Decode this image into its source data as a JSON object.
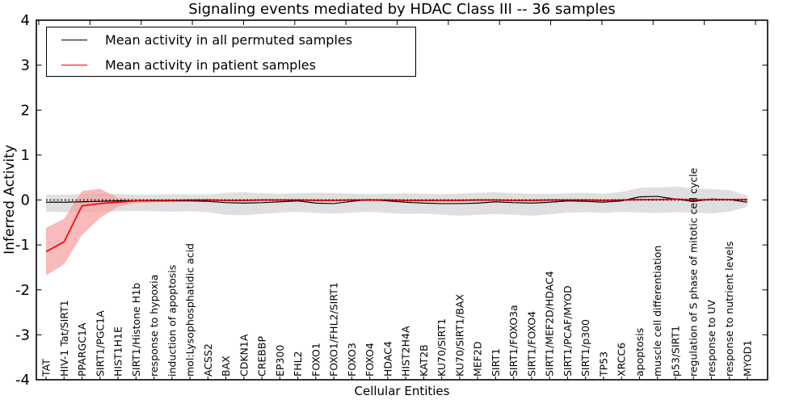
{
  "chart_data": {
    "type": "line",
    "title": "Signaling events mediated by HDAC Class III -- 36 samples",
    "xlabel": "Cellular Entities",
    "ylabel": "Inferred Activity",
    "ylim": [
      -4,
      4
    ],
    "yticks": [
      4,
      3,
      2,
      1,
      0,
      -1,
      -2,
      -3,
      -4
    ],
    "grid": false,
    "legend": {
      "position": "upper-left",
      "items": [
        "Mean activity in all permuted samples",
        "Mean activity in patient samples"
      ]
    },
    "zero_line": {
      "y": 0,
      "style": "dotted",
      "color": "#000000"
    },
    "categories": [
      "TAT",
      "HIV-1 Tat/SIRT1",
      "PPARGC1A",
      "SIRT1/PGC1A",
      "HIST1H1E",
      "SIRT1/Histone H1b",
      "response to hypoxia",
      "induction of apoptosis",
      "mol:Lysophosphatidic acid",
      "ACSS2",
      "BAX",
      "CDKN1A",
      "CREBBP",
      "EP300",
      "FHL2",
      "FOXO1",
      "FOXO1/FHL2/SIRT1",
      "FOXO3",
      "FOXO4",
      "HDAC4",
      "HIST2H4A",
      "KAT2B",
      "KU70/SIRT1",
      "KU70/SIRT1/BAX",
      "MEF2D",
      "SIRT1",
      "SIRT1/FOXO3a",
      "SIRT1/FOXO4",
      "SIRT1/MEF2D/HDAC4",
      "SIRT1/PCAF/MYOD",
      "SIRT1/p300",
      "TP53",
      "XRCC6",
      "apoptosis",
      "muscle cell differentiation",
      "p53/SIRT1",
      "regulation of S phase of mitotic cell cycle",
      "response to UV",
      "response to nutrient levels",
      "MYOD1"
    ],
    "series": [
      {
        "name": "Mean activity in all permuted samples",
        "color": "#000000",
        "style": "solid",
        "values": [
          -0.05,
          -0.05,
          -0.04,
          -0.03,
          -0.02,
          -0.02,
          -0.02,
          -0.02,
          -0.02,
          -0.03,
          -0.06,
          -0.07,
          -0.06,
          -0.04,
          -0.02,
          -0.07,
          -0.08,
          -0.03,
          0.01,
          -0.02,
          -0.05,
          -0.07,
          -0.08,
          -0.08,
          -0.07,
          -0.04,
          -0.06,
          -0.07,
          -0.05,
          -0.02,
          -0.03,
          -0.05,
          -0.02,
          0.07,
          0.08,
          0.02,
          -0.03,
          0.02,
          0.01,
          -0.05
        ]
      },
      {
        "name": "Mean activity in patient samples",
        "color": "#ff0000",
        "style": "solid",
        "values": [
          -1.15,
          -0.93,
          -0.13,
          -0.08,
          -0.05,
          -0.02,
          -0.01,
          -0.01,
          0,
          0,
          -0.01,
          -0.01,
          0,
          0,
          0,
          -0.01,
          -0.01,
          0,
          0,
          0,
          -0.01,
          -0.01,
          -0.01,
          -0.01,
          0,
          0,
          -0.01,
          -0.01,
          0,
          0,
          0,
          -0.01,
          0,
          0.01,
          0.01,
          0.02,
          0,
          0.01,
          0.01,
          0.01
        ]
      }
    ],
    "bands": [
      {
        "series": "Mean activity in all permuted samples",
        "color": "#dcdcdc",
        "high": [
          0.12,
          0.12,
          0.13,
          0.14,
          0.13,
          0.12,
          0.12,
          0.13,
          0.12,
          0.12,
          0.16,
          0.17,
          0.15,
          0.14,
          0.15,
          0.16,
          0.15,
          0.14,
          0.13,
          0.14,
          0.15,
          0.14,
          0.13,
          0.14,
          0.16,
          0.17,
          0.15,
          0.14,
          0.13,
          0.15,
          0.16,
          0.14,
          0.18,
          0.27,
          0.28,
          0.3,
          0.26,
          0.24,
          0.22,
          0.1
        ],
        "low": [
          -0.26,
          -0.27,
          -0.28,
          -0.26,
          -0.25,
          -0.24,
          -0.25,
          -0.26,
          -0.25,
          -0.27,
          -0.33,
          -0.34,
          -0.31,
          -0.28,
          -0.26,
          -0.29,
          -0.3,
          -0.28,
          -0.26,
          -0.29,
          -0.31,
          -0.3,
          -0.33,
          -0.35,
          -0.33,
          -0.31,
          -0.33,
          -0.35,
          -0.32,
          -0.28,
          -0.27,
          -0.29,
          -0.26,
          -0.28,
          -0.29,
          -0.27,
          -0.28,
          -0.3,
          -0.26,
          -0.15
        ]
      },
      {
        "series": "Mean activity in patient samples",
        "color": "#f5a3a3",
        "high": [
          -0.62,
          -0.42,
          0.2,
          0.25,
          0.05,
          0.03,
          0.02,
          0.02,
          0.02,
          0.02,
          0.02,
          0.02,
          0.02,
          0.02,
          0.02,
          0.02,
          0.02,
          0.02,
          0.02,
          0.02,
          0.02,
          0.02,
          0.02,
          0.02,
          0.02,
          0.02,
          0.02,
          0.02,
          0.02,
          0.02,
          0.02,
          0.02,
          0.02,
          0.03,
          0.03,
          0.04,
          0.03,
          0.03,
          0.03,
          0.03
        ],
        "low": [
          -1.68,
          -1.43,
          -0.78,
          -0.4,
          -0.15,
          -0.07,
          -0.05,
          -0.04,
          -0.03,
          -0.03,
          -0.04,
          -0.04,
          -0.03,
          -0.03,
          -0.03,
          -0.04,
          -0.04,
          -0.03,
          -0.03,
          -0.03,
          -0.04,
          -0.04,
          -0.04,
          -0.04,
          -0.03,
          -0.03,
          -0.04,
          -0.04,
          -0.03,
          -0.03,
          -0.03,
          -0.04,
          -0.03,
          -0.02,
          -0.02,
          -0.01,
          -0.03,
          -0.02,
          -0.02,
          -0.03
        ]
      }
    ]
  }
}
